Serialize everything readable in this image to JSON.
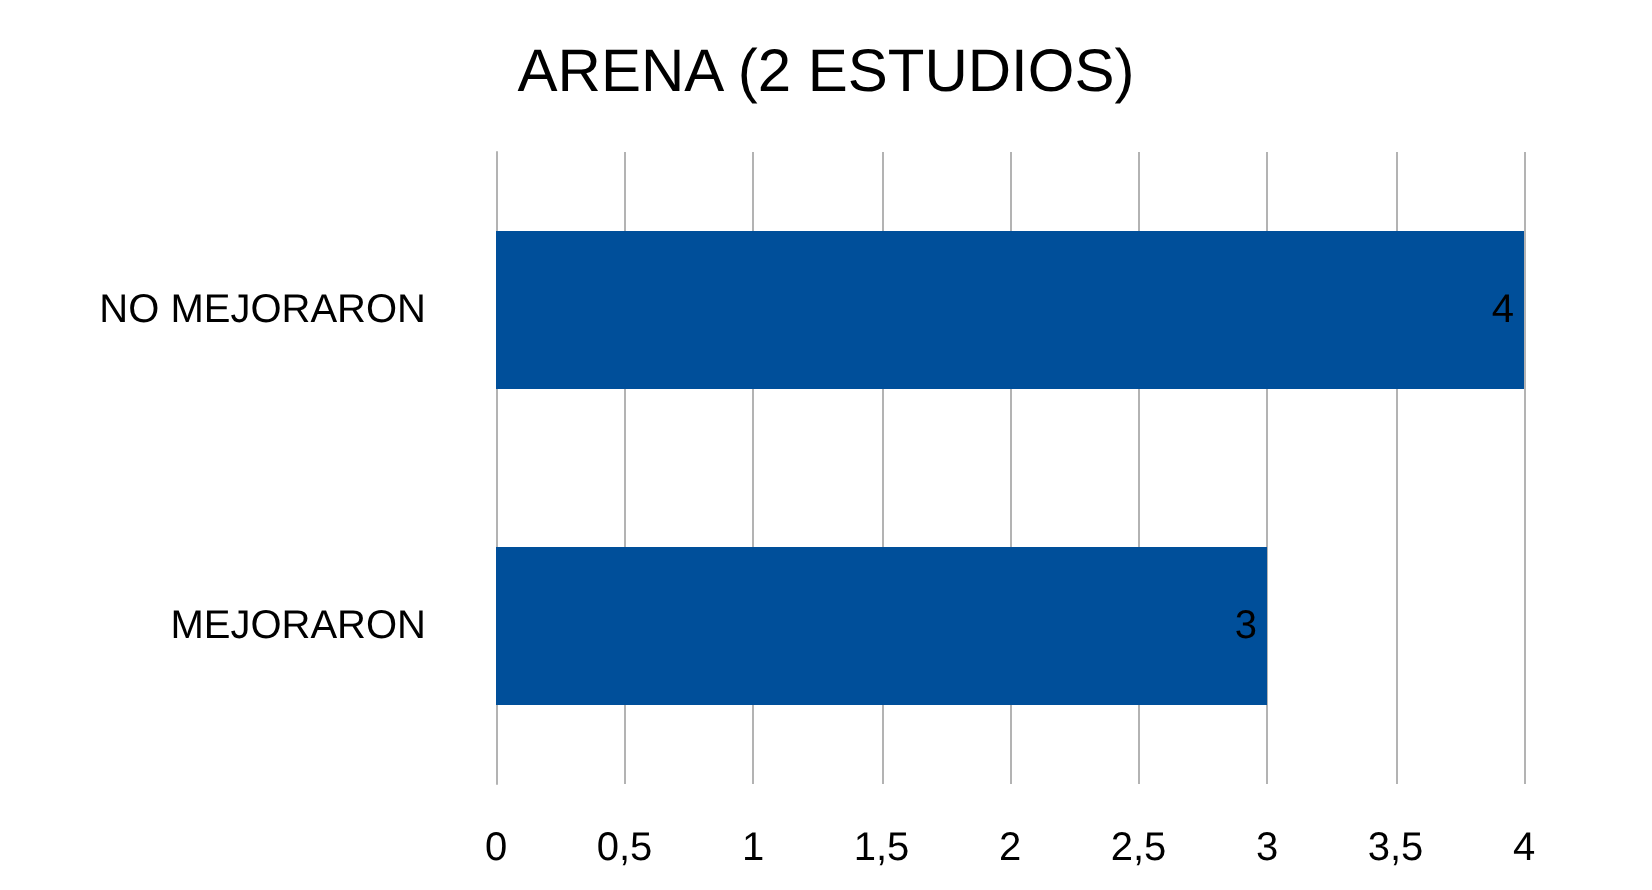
{
  "chart_data": {
    "type": "bar",
    "orientation": "horizontal",
    "title": "ARENA (2 ESTUDIOS)",
    "categories": [
      "NO MEJORARON",
      "MEJORARON"
    ],
    "values": [
      4,
      3
    ],
    "color": "#004f9a",
    "xlim": [
      0,
      4
    ],
    "xticks": [
      0,
      {
        "value": 0.5,
        "label": "0,5"
      },
      1,
      {
        "value": 1.5,
        "label": "1,5"
      },
      2,
      {
        "value": 2.5,
        "label": "2,5"
      },
      3,
      {
        "value": 3.5,
        "label": "3,5"
      },
      4
    ],
    "grid": "x",
    "data_labels": true
  }
}
